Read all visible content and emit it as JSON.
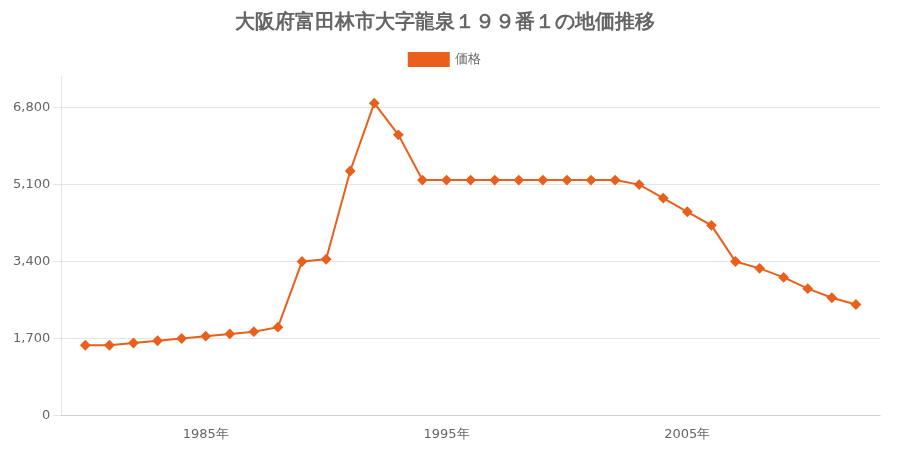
{
  "chart_data": {
    "type": "line",
    "title": "大阪府富田林市大字龍泉１９９番１の地価推移",
    "x": [
      1980,
      1981,
      1982,
      1983,
      1984,
      1985,
      1986,
      1987,
      1988,
      1989,
      1990,
      1991,
      1992,
      1993,
      1994,
      1995,
      1996,
      1997,
      1998,
      1999,
      2000,
      2001,
      2002,
      2003,
      2004,
      2005,
      2006,
      2007,
      2008,
      2009,
      2010,
      2011,
      2012
    ],
    "series": [
      {
        "name": "価格",
        "color": "#e8601c",
        "marker": "diamond",
        "values": [
          1550,
          1550,
          1600,
          1650,
          1700,
          1750,
          1800,
          1850,
          1950,
          3400,
          3450,
          5400,
          6900,
          6200,
          5200,
          5200,
          5200,
          5200,
          5200,
          5200,
          5200,
          5200,
          5200,
          5100,
          4800,
          4500,
          4200,
          3400,
          3250,
          3050,
          2800,
          2600,
          2450
        ]
      }
    ],
    "xlim": [
      1979,
      2013
    ],
    "xticks": [
      {
        "value": 1985,
        "label": "1985年"
      },
      {
        "value": 1995,
        "label": "1995年"
      },
      {
        "value": 2005,
        "label": "2005年"
      }
    ],
    "ylim": [
      0,
      7500
    ],
    "yticks": [
      0,
      {
        "value": 1700,
        "label": "1,700"
      },
      {
        "value": 3400,
        "label": "3,400"
      },
      {
        "value": 5100,
        "label": "5,100"
      },
      {
        "value": 6800,
        "label": "6,800"
      }
    ],
    "grid": "y",
    "legend": "top"
  }
}
